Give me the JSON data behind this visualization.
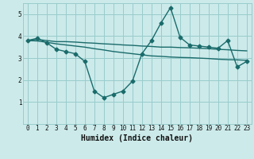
{
  "xlabel": "Humidex (Indice chaleur)",
  "xlim": [
    -0.5,
    23.5
  ],
  "ylim": [
    0,
    5.5
  ],
  "xticks": [
    0,
    1,
    2,
    3,
    4,
    5,
    6,
    7,
    8,
    9,
    10,
    11,
    12,
    13,
    14,
    15,
    16,
    17,
    18,
    19,
    20,
    21,
    22,
    23
  ],
  "yticks": [
    1,
    2,
    3,
    4,
    5
  ],
  "bg_color": "#cceaea",
  "grid_color": "#99cccc",
  "line_color": "#1a6b6b",
  "line1_x": [
    0,
    1,
    2,
    3,
    4,
    5,
    6,
    7,
    8,
    9,
    10,
    11,
    12,
    13,
    14,
    15,
    16,
    17,
    18,
    19,
    20,
    21,
    22,
    23
  ],
  "line1_y": [
    3.8,
    3.85,
    3.8,
    3.75,
    3.75,
    3.73,
    3.7,
    3.68,
    3.65,
    3.63,
    3.6,
    3.58,
    3.55,
    3.53,
    3.5,
    3.5,
    3.48,
    3.47,
    3.45,
    3.43,
    3.4,
    3.38,
    3.35,
    3.33
  ],
  "line2_x": [
    0,
    1,
    2,
    3,
    4,
    5,
    6,
    7,
    8,
    9,
    10,
    11,
    12,
    13,
    14,
    15,
    16,
    17,
    18,
    19,
    20,
    21,
    22,
    23
  ],
  "line2_y": [
    3.8,
    3.78,
    3.72,
    3.65,
    3.6,
    3.55,
    3.5,
    3.43,
    3.37,
    3.3,
    3.25,
    3.2,
    3.15,
    3.1,
    3.08,
    3.05,
    3.03,
    3.02,
    3.0,
    2.98,
    2.95,
    2.93,
    2.92,
    2.9
  ],
  "line3_x": [
    0,
    1,
    2,
    3,
    4,
    5,
    6,
    7,
    8,
    9,
    10,
    11,
    12,
    13,
    14,
    15,
    16,
    17,
    18,
    19,
    20,
    21,
    22,
    23
  ],
  "line3_y": [
    3.8,
    3.9,
    3.7,
    3.4,
    3.3,
    3.2,
    2.85,
    1.5,
    1.2,
    1.35,
    1.5,
    1.95,
    3.2,
    3.8,
    4.6,
    5.3,
    3.95,
    3.6,
    3.55,
    3.5,
    3.45,
    3.8,
    2.6,
    2.85
  ],
  "marker": "D",
  "markersize": 2.5,
  "linewidth": 1.0,
  "tick_fontsize": 5.5,
  "xlabel_fontsize": 7
}
